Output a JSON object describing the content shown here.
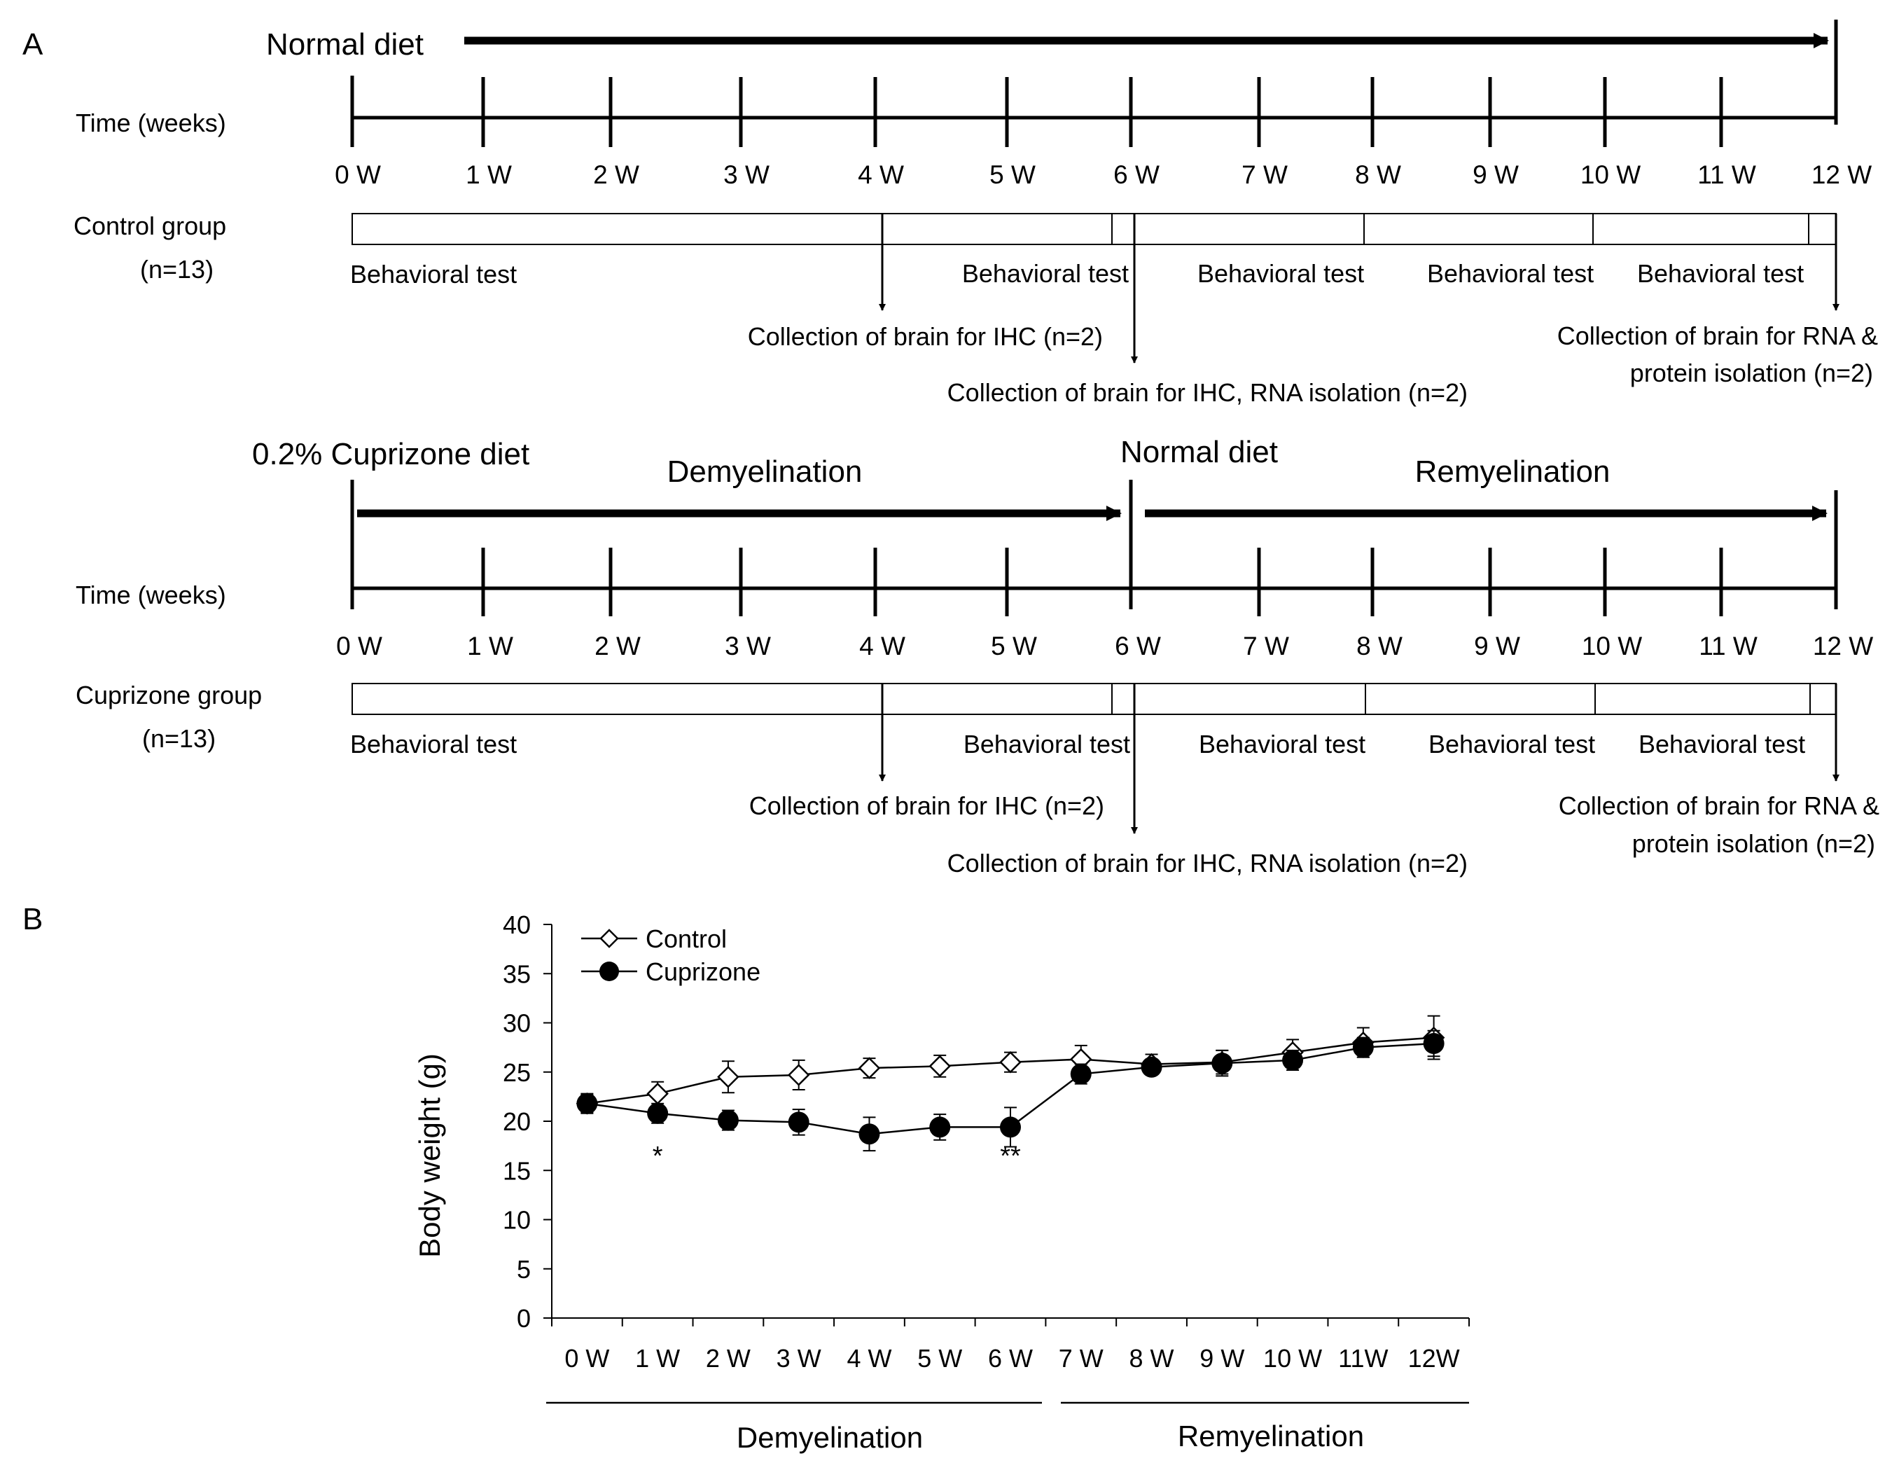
{
  "panel_a": {
    "label": "A",
    "time_label": "Time  (weeks)",
    "week_labels": [
      "0 W",
      "1 W",
      "2 W",
      "3 W",
      "4 W",
      "5 W",
      "6 W",
      "7 W",
      "8 W",
      "9 W",
      "10 W",
      "11 W",
      "12 W"
    ],
    "control": {
      "diet_label": "Normal diet",
      "group_label": "Control group",
      "n_label": "(n=13)",
      "behavioral_labels": [
        "Behavioral test",
        "Behavioral test",
        "Behavioral test",
        "Behavioral test",
        "Behavioral test"
      ],
      "ihc_label": "Collection of brain for IHC (n=2)",
      "ihc_rna_label": "Collection of brain for IHC, RNA  isolation (n=2)",
      "rna_protein_label_1": "Collection of brain for RNA &",
      "rna_protein_label_2": "protein isolation (n=2)"
    },
    "cuprizone": {
      "diet_label": "0.2% Cuprizone diet",
      "demyelination_label": "Demyelination",
      "normal_diet_label": "Normal diet",
      "remyelination_label": "Remyelination",
      "group_label": "Cuprizone group",
      "n_label": "(n=13)",
      "behavioral_labels": [
        "Behavioral test",
        "Behavioral test",
        "Behavioral test",
        "Behavioral test",
        "Behavioral test"
      ],
      "ihc_label": "Collection of brain for IHC (n=2)",
      "ihc_rna_label": "Collection of brain for IHC, RNA  isolation (n=2)",
      "rna_protein_label_1": "Collection of brain for RNA &",
      "rna_protein_label_2": "protein isolation (n=2)"
    }
  },
  "panel_b": {
    "label": "B",
    "phase_labels": {
      "demyelination": "Demyelination",
      "remyelination": "Remyelination"
    }
  },
  "chart_data": {
    "type": "line",
    "title": "",
    "xlabel": "",
    "ylabel": "Body weight (g)",
    "categories": [
      "0 W",
      "1 W",
      "2 W",
      "3 W",
      "4 W",
      "5 W",
      "6 W",
      "7 W",
      "8 W",
      "9 W",
      "10 W",
      "11W",
      "12W"
    ],
    "ylim": [
      0,
      40
    ],
    "yticks": [
      0,
      5,
      10,
      15,
      20,
      25,
      30,
      35,
      40
    ],
    "grid": false,
    "legend_position": "top-left",
    "series": [
      {
        "name": "Control",
        "marker": "open-diamond",
        "values": [
          21.8,
          22.8,
          24.5,
          24.7,
          25.4,
          25.6,
          26.0,
          26.3,
          25.8,
          26.0,
          27.0,
          28.0,
          28.5
        ],
        "errors": [
          1.0,
          1.2,
          1.6,
          1.5,
          1.0,
          1.1,
          1.0,
          1.4,
          1.0,
          1.2,
          1.3,
          1.5,
          2.2
        ]
      },
      {
        "name": "Cuprizone",
        "marker": "filled-circle",
        "values": [
          21.8,
          20.8,
          20.1,
          19.9,
          18.7,
          19.4,
          19.4,
          24.8,
          25.5,
          25.9,
          26.2,
          27.5,
          27.9
        ],
        "errors": [
          0.9,
          1.0,
          1.0,
          1.3,
          1.7,
          1.3,
          2.0,
          1.0,
          0.8,
          1.3,
          1.0,
          1.0,
          1.3
        ]
      }
    ],
    "annotations": [
      {
        "category_index": 1,
        "text": "*"
      },
      {
        "category_index": 6,
        "text": "**"
      }
    ]
  }
}
